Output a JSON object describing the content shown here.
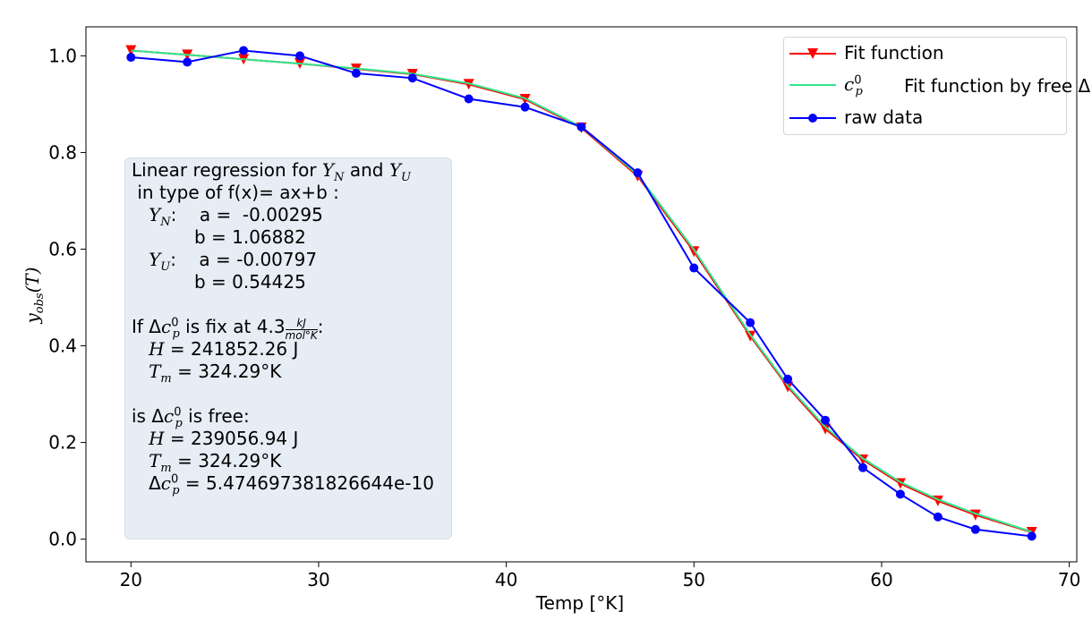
{
  "chart_data": {
    "type": "line",
    "xlabel": "Temp [°K]",
    "ylabel": "y_obs(T)",
    "xlim": [
      17.6,
      70.4
    ],
    "ylim": [
      -0.047,
      1.06
    ],
    "xticks": [
      20,
      30,
      40,
      50,
      60,
      70
    ],
    "yticks": [
      0.0,
      0.2,
      0.4,
      0.6,
      0.8,
      1.0
    ],
    "x_tick_labels": [
      "20",
      "30",
      "40",
      "50",
      "60",
      "70"
    ],
    "y_tick_labels": [
      "0.0",
      "0.2",
      "0.4",
      "0.6",
      "0.8",
      "1.0"
    ],
    "legend_position": "top-right",
    "series": [
      {
        "name": "Fit function",
        "color": "#ff0000",
        "marker": "triangle-down",
        "x": [
          20,
          23,
          26,
          29,
          32,
          35,
          38,
          41,
          44,
          47,
          50,
          53,
          55,
          57,
          59,
          61,
          63,
          65,
          68
        ],
        "y": [
          1.011,
          1.002,
          0.993,
          0.984,
          0.973,
          0.962,
          0.941,
          0.91,
          0.851,
          0.751,
          0.595,
          0.42,
          0.315,
          0.228,
          0.164,
          0.115,
          0.079,
          0.05,
          0.014
        ]
      },
      {
        "name": "Fit function by free Δc⁰ₚ",
        "color": "#2ee88c",
        "marker": "none",
        "x": [
          20,
          23,
          26,
          29,
          32,
          35,
          38,
          41,
          44,
          47,
          50,
          53,
          55,
          57,
          59,
          61,
          63,
          65,
          68
        ],
        "y": [
          1.011,
          1.002,
          0.993,
          0.984,
          0.974,
          0.963,
          0.943,
          0.912,
          0.853,
          0.754,
          0.599,
          0.423,
          0.318,
          0.232,
          0.167,
          0.118,
          0.082,
          0.053,
          0.015
        ]
      },
      {
        "name": "raw data",
        "color": "#0000ff",
        "marker": "circle",
        "x": [
          20,
          23,
          26,
          29,
          32,
          35,
          38,
          41,
          44,
          47,
          50,
          53,
          55,
          57,
          59,
          61,
          63,
          65,
          68
        ],
        "y": [
          0.997,
          0.987,
          1.011,
          1.0,
          0.964,
          0.954,
          0.911,
          0.894,
          0.853,
          0.758,
          0.561,
          0.448,
          0.331,
          0.246,
          0.148,
          0.093,
          0.046,
          0.02,
          0.006
        ]
      }
    ]
  },
  "legend": {
    "item1": "Fit function",
    "item2_prefix": "Fit function by free Δ",
    "item3": "raw data"
  },
  "labels": {
    "ylabel_main": "y",
    "ylabel_sub": "obs",
    "ylabel_tail": "(T)",
    "xlabel": "Temp [°K]"
  },
  "annotation": {
    "l1_text": "Linear regression for ",
    "l1_yn": "Y",
    "l1_yn_sub": "N",
    "l1_and": " and ",
    "l1_yu": "Y",
    "l1_yu_sub": "U",
    "l2": " in type of f(x)= ax+b :",
    "l3_a": "a =  -0.00295",
    "l4_b": "b = 1.06882",
    "l5_a": "a = -0.00797",
    "l6_b": "b = 0.54425",
    "l8_prefix": "If Δ",
    "l8_mid": " is fix at 4.3",
    "frac_num": "kJ",
    "frac_den": "mol°K",
    "l9": " = 241852.26 J",
    "l10": " = 324.29°K",
    "l12_prefix": "is Δ",
    "l12_suffix": " is free:",
    "l13": " = 239056.94 J",
    "l14": " = 324.29°K",
    "l15": " = 5.474697381826644e-10"
  }
}
